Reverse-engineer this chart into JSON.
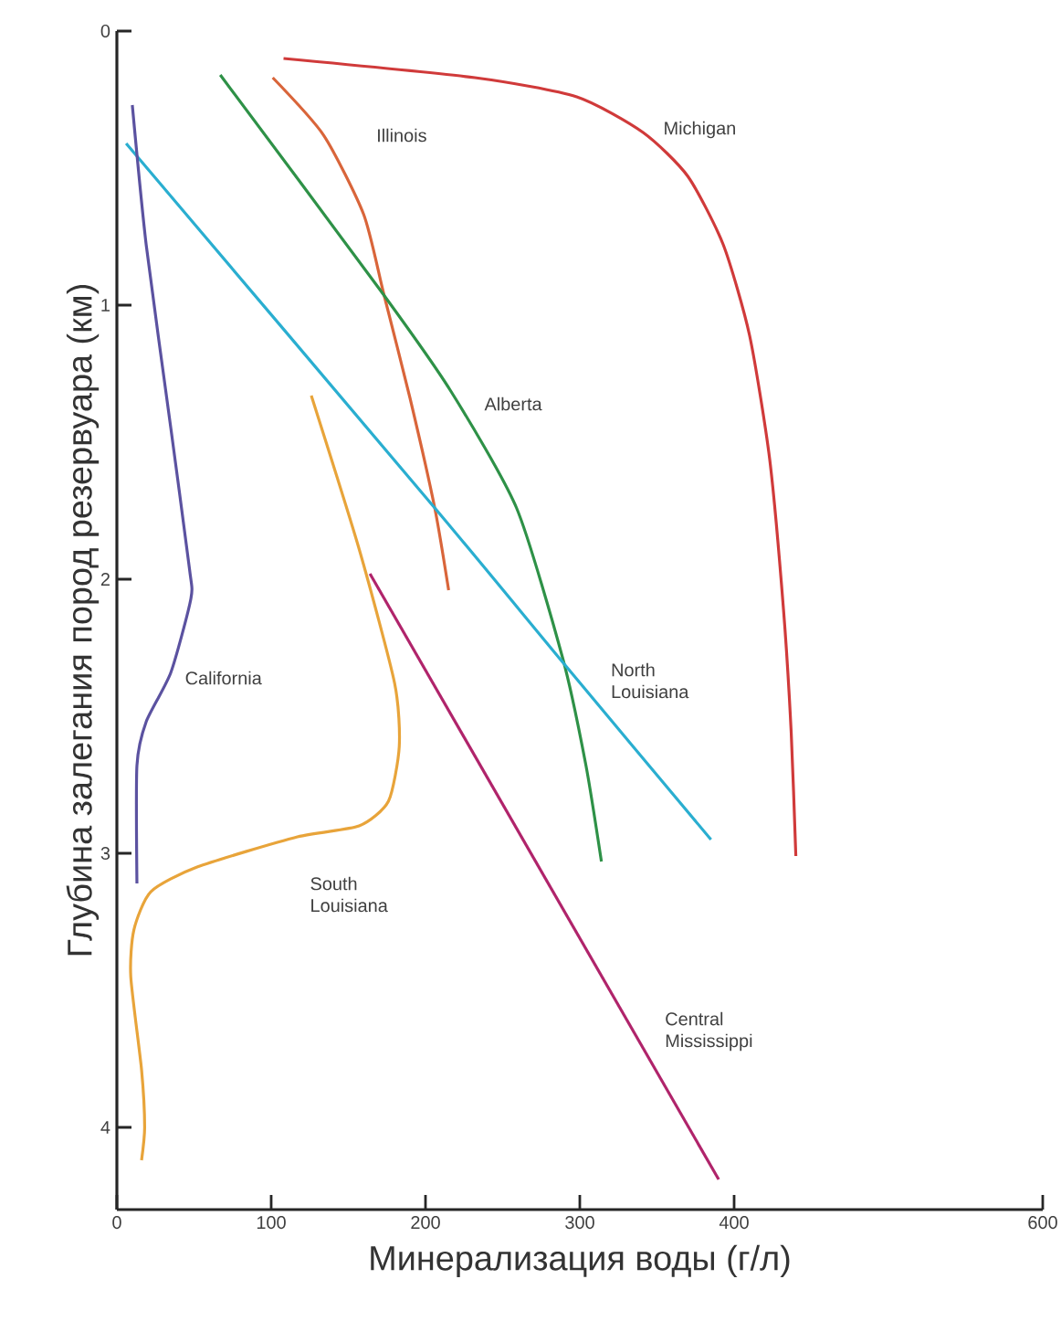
{
  "chart_data": {
    "type": "line",
    "xlabel": "Минерализация воды (г/л)",
    "ylabel": "Глубина залегания пород резервуара (км)",
    "xlim": [
      0,
      600
    ],
    "xticks": [
      0,
      100,
      200,
      300,
      400,
      600
    ],
    "ylim": [
      4.3,
      0
    ],
    "yticks": [
      0,
      1,
      2,
      3,
      4
    ],
    "grid": false,
    "legend": false,
    "marker": "none",
    "line_style": "solid",
    "series": [
      {
        "name": "Michigan",
        "color": "#d03a3a",
        "x": [
          108,
          232,
          298,
          341,
          370,
          393,
          410,
          423,
          432,
          437,
          440
        ],
        "values": [
          0.1,
          0.17,
          0.24,
          0.37,
          0.53,
          0.78,
          1.11,
          1.56,
          2.11,
          2.56,
          3.01
        ]
      },
      {
        "name": "Illinois",
        "color": "#d9653a",
        "x": [
          101,
          134,
          160,
          173,
          190,
          206,
          215
        ],
        "values": [
          0.17,
          0.38,
          0.67,
          0.96,
          1.34,
          1.74,
          2.04
        ]
      },
      {
        "name": "Alberta",
        "color": "#2e9147",
        "x": [
          67,
          170,
          216,
          259,
          289,
          304,
          314
        ],
        "values": [
          0.16,
          0.94,
          1.31,
          1.74,
          2.29,
          2.68,
          3.03
        ]
      },
      {
        "name": "North Louisiana",
        "color": "#2aaed0",
        "x": [
          6,
          206,
          287,
          385
        ],
        "values": [
          0.41,
          1.74,
          2.29,
          2.95
        ]
      },
      {
        "name": "California",
        "color": "#5b52a0",
        "x": [
          10,
          19,
          35,
          47,
          48,
          35,
          19,
          13,
          13
        ],
        "values": [
          0.27,
          0.78,
          1.45,
          1.96,
          2.07,
          2.34,
          2.52,
          2.68,
          3.11
        ]
      },
      {
        "name": "South Louisiana",
        "color": "#e8a43a",
        "x": [
          126,
          157,
          180,
          183,
          176,
          157,
          117,
          52,
          22,
          11,
          9,
          16,
          18,
          16
        ],
        "values": [
          1.33,
          1.89,
          2.38,
          2.61,
          2.81,
          2.9,
          2.94,
          3.05,
          3.14,
          3.28,
          3.45,
          3.79,
          4.0,
          4.12
        ]
      },
      {
        "name": "Central Mississippi",
        "color": "#b0246b",
        "x": [
          164,
          390
        ],
        "values": [
          1.98,
          4.19
        ]
      }
    ]
  }
}
